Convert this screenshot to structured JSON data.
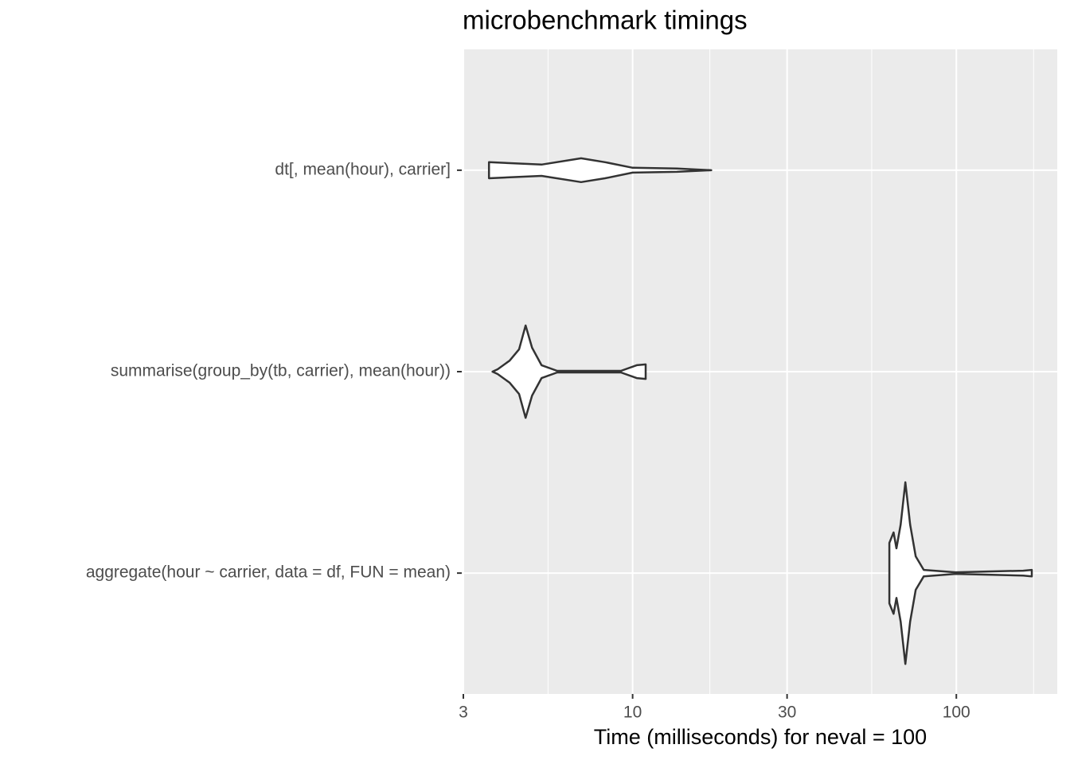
{
  "chart_data": {
    "type": "violin",
    "title": "microbenchmark timings",
    "x_label": "Time (milliseconds) for neval = 100",
    "log_x": true,
    "grid": true,
    "xlim": [
      3,
      205
    ],
    "xticks": [
      3,
      10,
      30,
      100
    ],
    "minor_xticks": [
      5.48,
      17.32,
      54.77,
      173.2
    ],
    "fill": "#ffffff",
    "color": "#333333",
    "categories": [
      "dt[, mean(hour), carrier]",
      "summarise(group_by(tb, carrier), mean(hour))",
      "aggregate(hour ~ carrier, data = df, FUN = mean)"
    ],
    "violins": [
      {
        "x": [
          3.6,
          5.23,
          6.93,
          8.22,
          10,
          13.7,
          17.5
        ],
        "widths": [
          0.04,
          0.028,
          0.059,
          0.04,
          0.012,
          0.008,
          0
        ]
      },
      {
        "x": [
          3.69,
          3.83,
          4.17,
          4.46,
          4.67,
          4.89,
          5.23,
          5.85,
          6.93,
          9.2,
          10.3,
          10.97
        ],
        "widths": [
          0,
          0.012,
          0.055,
          0.111,
          0.229,
          0.119,
          0.032,
          0.004,
          0.004,
          0.004,
          0.032,
          0.036
        ]
      },
      {
        "x": [
          62.1,
          64.0,
          65.3,
          67.3,
          69.6,
          72.0,
          74.9,
          79.3,
          99.5,
          161,
          171
        ],
        "widths": [
          0.15,
          0.202,
          0.123,
          0.241,
          0.451,
          0.241,
          0.083,
          0.016,
          0.004,
          0.012,
          0.016
        ]
      }
    ]
  }
}
